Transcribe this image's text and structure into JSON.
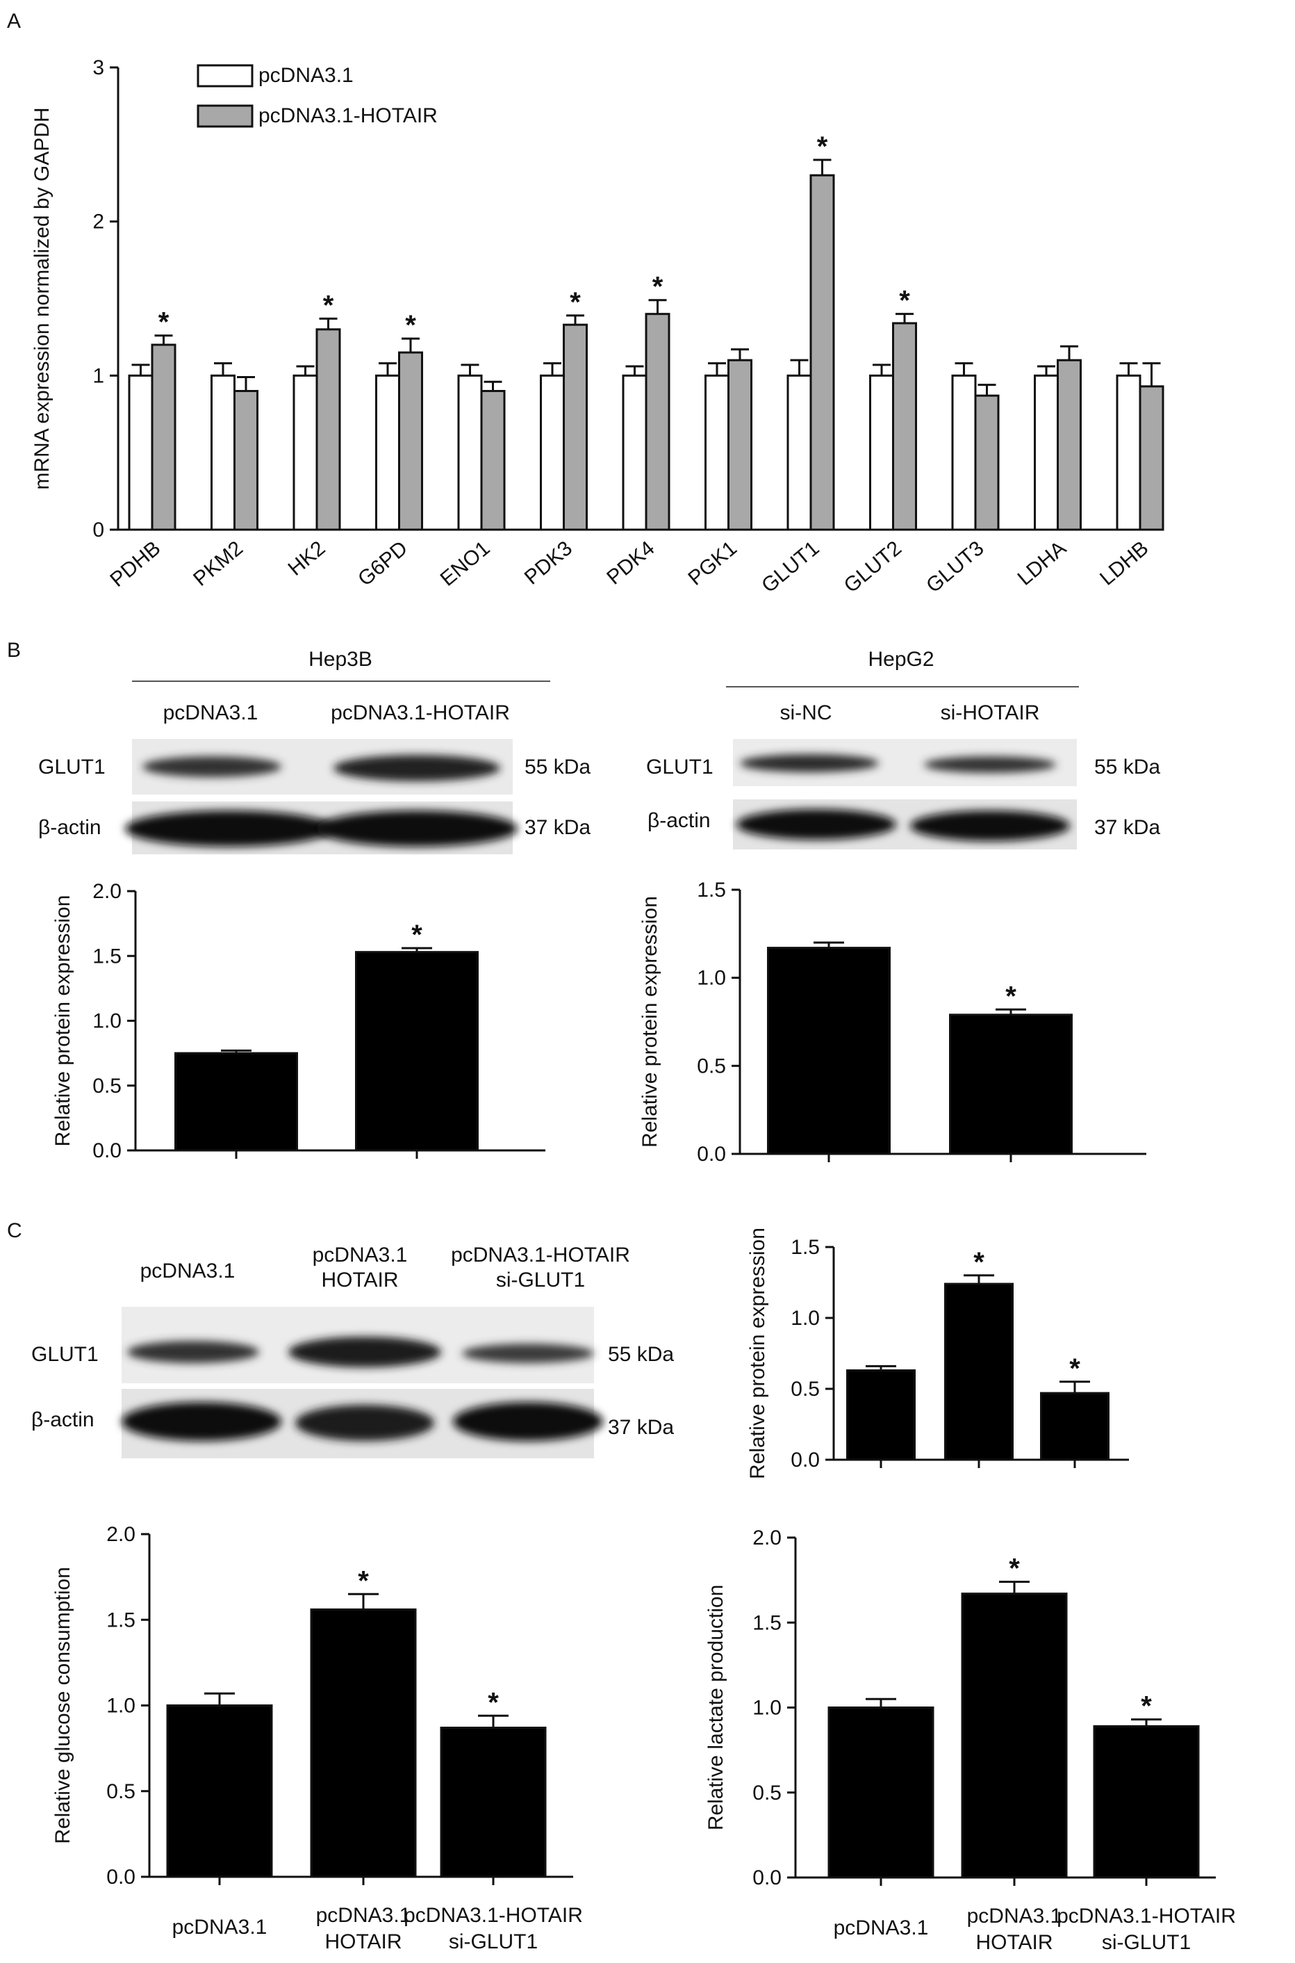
{
  "panels": {
    "A": {
      "letter": "A"
    },
    "B": {
      "letter": "B"
    },
    "C": {
      "letter": "C"
    }
  },
  "blots": {
    "b_left": {
      "cell_line": "Hep3B",
      "lanes": [
        "pcDNA3.1",
        "pcDNA3.1-HOTAIR"
      ],
      "rows": [
        {
          "label": "GLUT1",
          "kda": "55 kDa"
        },
        {
          "label": "β-actin",
          "kda": "37 kDa"
        }
      ]
    },
    "b_right": {
      "cell_line": "HepG2",
      "lanes": [
        "si-NC",
        "si-HOTAIR"
      ],
      "rows": [
        {
          "label": "GLUT1",
          "kda": "55 kDa"
        },
        {
          "label": "β-actin",
          "kda": "37 kDa"
        }
      ]
    },
    "c": {
      "lanes": [
        "pcDNA3.1",
        "pcDNA3.1\nHOTAIR",
        "pcDNA3.1-HOTAIR\nsi-GLUT1"
      ],
      "rows": [
        {
          "label": "GLUT1",
          "kda": "55 kDa"
        },
        {
          "label": "β-actin",
          "kda": "37 kDa"
        }
      ]
    }
  },
  "chart_data": [
    {
      "id": "A",
      "type": "bar",
      "ylabel": "mRNA expression normalized by GAPDH",
      "ylim": [
        0,
        3
      ],
      "yticks": [
        0,
        1,
        2,
        3
      ],
      "categories": [
        "PDHB",
        "PKM2",
        "HK2",
        "G6PD",
        "ENO1",
        "PDK3",
        "PDK4",
        "PGK1",
        "GLUT1",
        "GLUT2",
        "GLUT3",
        "LDHA",
        "LDHB"
      ],
      "legend": "top-left",
      "series": [
        {
          "name": "pcDNA3.1",
          "color": "#ffffff",
          "values": [
            1.0,
            1.0,
            1.0,
            1.0,
            1.0,
            1.0,
            1.0,
            1.0,
            1.0,
            1.0,
            1.0,
            1.0,
            1.0
          ],
          "errors": [
            0.07,
            0.08,
            0.06,
            0.08,
            0.07,
            0.08,
            0.06,
            0.08,
            0.1,
            0.07,
            0.08,
            0.06,
            0.08
          ]
        },
        {
          "name": "pcDNA3.1-HOTAIR",
          "color": "#a8a8a8",
          "values": [
            1.2,
            0.9,
            1.3,
            1.15,
            0.9,
            1.33,
            1.4,
            1.1,
            2.3,
            1.34,
            0.87,
            1.1,
            0.93
          ],
          "errors": [
            0.06,
            0.09,
            0.07,
            0.09,
            0.06,
            0.06,
            0.09,
            0.07,
            0.1,
            0.06,
            0.07,
            0.09,
            0.15
          ]
        }
      ],
      "significant": [
        true,
        false,
        true,
        true,
        false,
        true,
        true,
        false,
        true,
        true,
        false,
        false,
        false
      ]
    },
    {
      "id": "B-left",
      "type": "bar",
      "ylabel": "Relative protein expression",
      "ylim": [
        0,
        2.0
      ],
      "yticks": [
        "0.0",
        "0.5",
        "1.0",
        "1.5",
        "2.0"
      ],
      "categories": [
        "",
        ""
      ],
      "values": [
        0.75,
        1.53
      ],
      "errors": [
        0.02,
        0.03
      ],
      "significant": [
        false,
        true
      ]
    },
    {
      "id": "B-right",
      "type": "bar",
      "ylabel": "Relative protein expression",
      "ylim": [
        0,
        1.5
      ],
      "yticks": [
        "0.0",
        "0.5",
        "1.0",
        "1.5"
      ],
      "categories": [
        "",
        ""
      ],
      "values": [
        1.17,
        0.79
      ],
      "errors": [
        0.03,
        0.03
      ],
      "significant": [
        false,
        true
      ]
    },
    {
      "id": "C-protein",
      "type": "bar",
      "ylabel": "Relative protein expression",
      "ylim": [
        0,
        1.5
      ],
      "yticks": [
        "0.0",
        "0.5",
        "1.0",
        "1.5"
      ],
      "categories": [
        "",
        "",
        ""
      ],
      "values": [
        0.63,
        1.24,
        0.47
      ],
      "errors": [
        0.03,
        0.06,
        0.08
      ],
      "significant": [
        false,
        true,
        true
      ]
    },
    {
      "id": "C-glucose",
      "type": "bar",
      "ylabel": "Relative glucose consumption",
      "ylim": [
        0,
        2.0
      ],
      "yticks": [
        "0.0",
        "0.5",
        "1.0",
        "1.5",
        "2.0"
      ],
      "categories": [
        "pcDNA3.1",
        "pcDNA3.1\nHOTAIR",
        "pcDNA3.1-HOTAIR\nsi-GLUT1"
      ],
      "values": [
        1.0,
        1.56,
        0.87
      ],
      "errors": [
        0.07,
        0.09,
        0.07
      ],
      "significant": [
        false,
        true,
        true
      ]
    },
    {
      "id": "C-lactate",
      "type": "bar",
      "ylabel": "Relative lactate production",
      "ylim": [
        0,
        2.0
      ],
      "yticks": [
        "0.0",
        "0.5",
        "1.0",
        "1.5",
        "2.0"
      ],
      "categories": [
        "pcDNA3.1",
        "pcDNA3.1\nHOTAIR",
        "pcDNA3.1-HOTAIR\nsi-GLUT1"
      ],
      "values": [
        1.0,
        1.67,
        0.89
      ],
      "errors": [
        0.05,
        0.07,
        0.04
      ],
      "significant": [
        false,
        true,
        true
      ]
    }
  ]
}
